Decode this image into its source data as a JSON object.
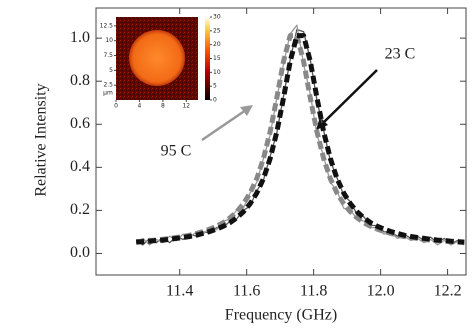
{
  "chart_data": {
    "type": "line",
    "xlabel": "Frequency (GHz)",
    "ylabel": "Relative Intensity",
    "x": [
      11.27,
      11.29,
      11.31,
      11.33,
      11.35,
      11.37,
      11.39,
      11.41,
      11.43,
      11.45,
      11.47,
      11.49,
      11.51,
      11.53,
      11.55,
      11.57,
      11.59,
      11.61,
      11.63,
      11.65,
      11.67,
      11.69,
      11.71,
      11.73,
      11.75,
      11.77,
      11.79,
      11.81,
      11.83,
      11.85,
      11.87,
      11.89,
      11.91,
      11.93,
      11.95,
      11.97,
      11.99,
      12.01,
      12.03,
      12.05,
      12.07,
      12.09,
      12.11,
      12.13,
      12.15,
      12.17,
      12.19,
      12.21,
      12.23,
      12.25
    ],
    "series": [
      {
        "color": "#555555",
        "dashed": false,
        "values": [
          0.06,
          0.04,
          0.07,
          0.05,
          0.075,
          0.05,
          0.08,
          0.065,
          0.09,
          0.08,
          0.1,
          0.095,
          0.12,
          0.12,
          0.15,
          0.16,
          0.2,
          0.22,
          0.29,
          0.34,
          0.45,
          0.56,
          0.73,
          0.9,
          1.04,
          1.03,
          0.9,
          0.71,
          0.57,
          0.43,
          0.35,
          0.27,
          0.24,
          0.18,
          0.17,
          0.13,
          0.13,
          0.1,
          0.1,
          0.08,
          0.09,
          0.07,
          0.08,
          0.06,
          0.075,
          0.05,
          0.07,
          0.045,
          0.06,
          0.05
        ]
      },
      {
        "color": "#9a9a9a",
        "dashed": false,
        "values": [
          0.05,
          0.07,
          0.04,
          0.065,
          0.05,
          0.08,
          0.06,
          0.09,
          0.075,
          0.1,
          0.09,
          0.12,
          0.11,
          0.15,
          0.16,
          0.2,
          0.21,
          0.28,
          0.33,
          0.44,
          0.55,
          0.72,
          0.88,
          1.02,
          1.06,
          0.88,
          0.74,
          0.55,
          0.45,
          0.33,
          0.29,
          0.21,
          0.2,
          0.16,
          0.15,
          0.12,
          0.12,
          0.09,
          0.1,
          0.07,
          0.08,
          0.06,
          0.07,
          0.05,
          0.065,
          0.04,
          0.06,
          0.04,
          0.055,
          0.04
        ]
      },
      {
        "color": "#888888",
        "dashed": true,
        "values": [
          0.055,
          0.057,
          0.06,
          0.062,
          0.066,
          0.07,
          0.074,
          0.079,
          0.085,
          0.093,
          0.102,
          0.113,
          0.126,
          0.143,
          0.165,
          0.193,
          0.23,
          0.28,
          0.347,
          0.44,
          0.564,
          0.722,
          0.892,
          1.012,
          1.012,
          0.892,
          0.722,
          0.564,
          0.44,
          0.347,
          0.28,
          0.23,
          0.193,
          0.165,
          0.143,
          0.126,
          0.113,
          0.102,
          0.093,
          0.085,
          0.079,
          0.074,
          0.07,
          0.066,
          0.062,
          0.06,
          0.057,
          0.055,
          0.053,
          0.051
        ]
      },
      {
        "color": "#111111",
        "dashed": true,
        "values": [
          0.053,
          0.055,
          0.057,
          0.06,
          0.062,
          0.066,
          0.07,
          0.074,
          0.079,
          0.085,
          0.093,
          0.102,
          0.113,
          0.126,
          0.143,
          0.165,
          0.193,
          0.23,
          0.28,
          0.347,
          0.44,
          0.564,
          0.722,
          0.892,
          1.012,
          1.012,
          0.892,
          0.722,
          0.564,
          0.44,
          0.347,
          0.28,
          0.23,
          0.193,
          0.165,
          0.143,
          0.126,
          0.113,
          0.102,
          0.093,
          0.085,
          0.079,
          0.074,
          0.07,
          0.066,
          0.062,
          0.06,
          0.057,
          0.055,
          0.053
        ]
      }
    ],
    "xlim": [
      11.15,
      12.255
    ],
    "ylim": [
      -0.1,
      1.14
    ],
    "xticks": [
      11.4,
      11.6,
      11.8,
      {
        "value": 12,
        "label": "12.0"
      },
      12.2
    ],
    "yticks": [
      {
        "value": 0,
        "label": "0.0"
      },
      0.2,
      0.4,
      0.6,
      0.8,
      {
        "value": 1,
        "label": "1.0"
      }
    ],
    "grid": false,
    "annotations": [
      "23 C",
      "95 C"
    ],
    "inset": {
      "xlim": [
        0,
        14
      ],
      "ylim": [
        0,
        14
      ],
      "xticks": [
        0,
        4,
        8,
        12
      ],
      "yticks": [
        2.5,
        5,
        7.5,
        10,
        12.5
      ],
      "ylabel": "μm",
      "clim": [
        0,
        30
      ],
      "colorbar_ticks": [
        0,
        5,
        10,
        15,
        20,
        25,
        30
      ]
    }
  }
}
